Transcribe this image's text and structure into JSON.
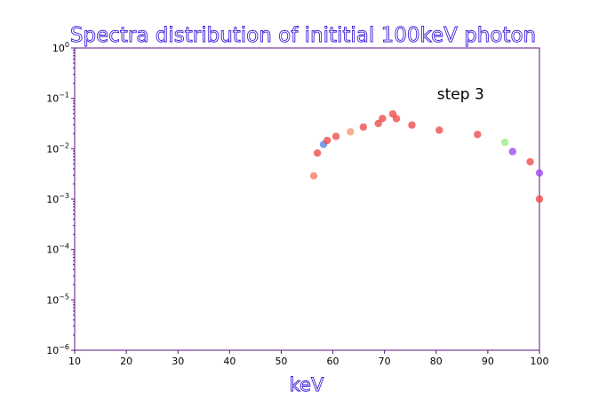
{
  "chart_data": {
    "type": "scatter",
    "title": "Spectra distribution of inititial 100keV photon",
    "xlabel": "keV",
    "ylabel": "",
    "xscale": "linear",
    "yscale": "log",
    "xlim": [
      10,
      100
    ],
    "ylim": [
      1e-06,
      1
    ],
    "xticks": [
      10,
      20,
      30,
      40,
      50,
      60,
      70,
      80,
      90,
      100
    ],
    "xtick_labels": [
      "10",
      "20",
      "30",
      "40",
      "50",
      "60",
      "70",
      "80",
      "90",
      "100"
    ],
    "yticks": [
      1,
      0.1,
      0.01,
      0.001,
      0.0001,
      1e-05,
      1e-06
    ],
    "ytick_labels": [
      {
        "base": "10",
        "exp": "0"
      },
      {
        "base": "10",
        "exp": "−1"
      },
      {
        "base": "10",
        "exp": "−2"
      },
      {
        "base": "10",
        "exp": "−3"
      },
      {
        "base": "10",
        "exp": "−4"
      },
      {
        "base": "10",
        "exp": "−5"
      },
      {
        "base": "10",
        "exp": "−6"
      }
    ],
    "annotation": {
      "text": "step 3",
      "x": 80,
      "y": 0.1
    },
    "points": [
      {
        "x": 56.3,
        "y": 0.0029,
        "color": "#f47e5e"
      },
      {
        "x": 57.0,
        "y": 0.0082,
        "color": "#f04848"
      },
      {
        "x": 58.2,
        "y": 0.0122,
        "color": "#5b84e8"
      },
      {
        "x": 58.9,
        "y": 0.0146,
        "color": "#f04848"
      },
      {
        "x": 60.6,
        "y": 0.0176,
        "color": "#f04848"
      },
      {
        "x": 63.4,
        "y": 0.0217,
        "color": "#f49a72"
      },
      {
        "x": 65.9,
        "y": 0.027,
        "color": "#f04848"
      },
      {
        "x": 68.8,
        "y": 0.0317,
        "color": "#f04848"
      },
      {
        "x": 69.6,
        "y": 0.0398,
        "color": "#f04848"
      },
      {
        "x": 71.6,
        "y": 0.049,
        "color": "#f04848"
      },
      {
        "x": 72.3,
        "y": 0.0397,
        "color": "#f04848"
      },
      {
        "x": 75.3,
        "y": 0.0295,
        "color": "#f04848"
      },
      {
        "x": 80.6,
        "y": 0.0234,
        "color": "#f04848"
      },
      {
        "x": 88.0,
        "y": 0.0192,
        "color": "#f04848"
      },
      {
        "x": 93.3,
        "y": 0.0134,
        "color": "#96f082"
      },
      {
        "x": 94.8,
        "y": 0.0088,
        "color": "#9a48f0"
      },
      {
        "x": 98.2,
        "y": 0.0055,
        "color": "#f04848"
      },
      {
        "x": 100.0,
        "y": 0.0033,
        "color": "#9a48f0"
      },
      {
        "x": 100.0,
        "y": 0.001,
        "color": "#f04848"
      }
    ]
  }
}
